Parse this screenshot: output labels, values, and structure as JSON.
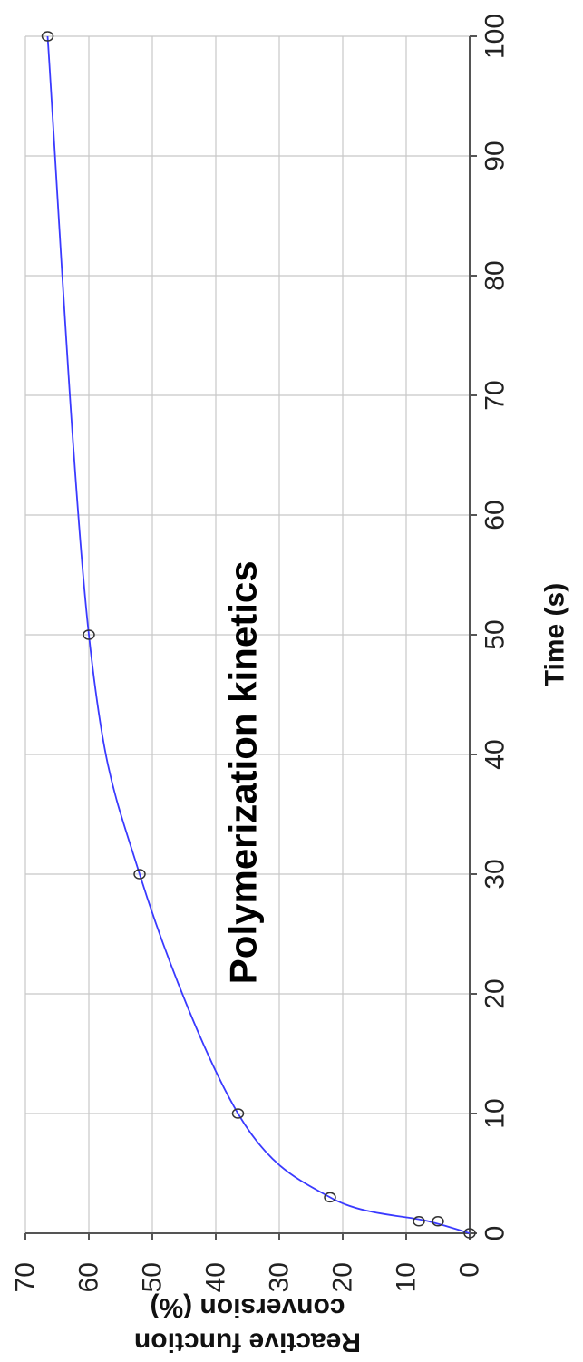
{
  "chart_data": {
    "type": "scatter",
    "title": "Polymerization kinetics",
    "xlabel": "Time (s)",
    "ylabel": "Reactive function conversion (%)",
    "ylabel_lines": [
      "Reactive function",
      "conversion (%)"
    ],
    "xlim": [
      0,
      100
    ],
    "ylim": [
      0,
      70
    ],
    "x_ticks": [
      0,
      10,
      20,
      30,
      40,
      50,
      60,
      70,
      80,
      90,
      100
    ],
    "y_ticks": [
      0,
      10,
      20,
      30,
      40,
      50,
      60,
      70
    ],
    "grid": true,
    "orientation": "rotated 90° clockwise",
    "series": [
      {
        "x": [
          0,
          1,
          1,
          3,
          10,
          30,
          50,
          100
        ],
        "y": [
          0,
          5,
          8,
          22,
          36.5,
          52,
          60,
          66.5
        ],
        "marker": "open-circle",
        "line": "smooth",
        "color": "#3a3aff"
      }
    ]
  }
}
